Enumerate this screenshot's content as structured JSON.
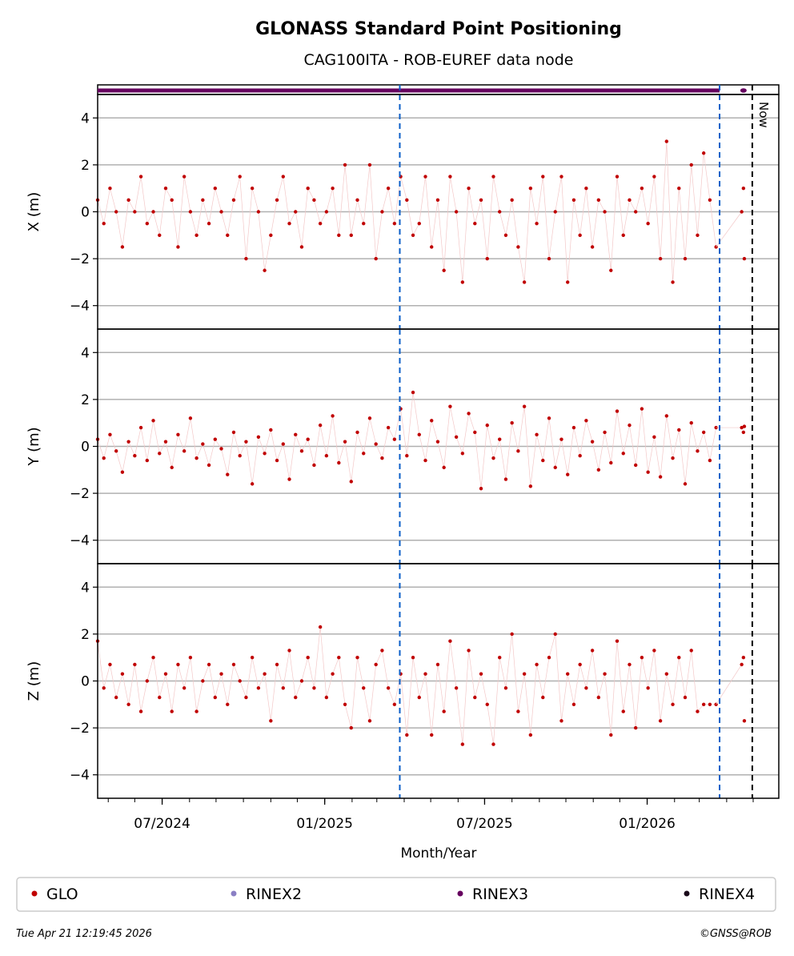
{
  "chart_data": {
    "type": "scatter",
    "title": "GLONASS Standard Point Positioning",
    "subtitle": "CAG100ITA - ROB-EUREF data node",
    "xlabel": "Month/Year",
    "x_start_date": "2024-04-19",
    "x_range_days": [
      0,
      771
    ],
    "x_ticks": [
      {
        "label": "07/2024",
        "day": 73
      },
      {
        "label": "01/2025",
        "day": 257
      },
      {
        "label": "07/2025",
        "day": 438
      },
      {
        "label": "01/2026",
        "day": 622
      }
    ],
    "minor_tick_days": [
      12,
      42,
      73,
      104,
      134,
      165,
      196,
      226,
      257,
      288,
      316,
      347,
      377,
      408,
      438,
      469,
      500,
      530,
      561,
      591,
      622,
      653,
      681,
      712,
      742
    ],
    "ylim": [
      -5,
      5
    ],
    "y_ticks": [
      4,
      2,
      0,
      -2,
      -4
    ],
    "y_tick_labels": [
      "4",
      "2",
      "0",
      "−2",
      "−4"
    ],
    "grid": true,
    "vlines": [
      {
        "day": 342,
        "color": "#0a5fc8",
        "style": "dashed"
      },
      {
        "day": 704,
        "color": "#0a5fc8",
        "style": "dashed"
      },
      {
        "day": 741,
        "color": "#000000",
        "style": "dashed",
        "label": "Now"
      }
    ],
    "step_days": 7,
    "series": [
      {
        "name": "X (m)",
        "color": "#c00000",
        "values": [
          0.5,
          -0.5,
          1,
          0,
          -1.5,
          0.5,
          0,
          1.5,
          -0.5,
          0,
          -1,
          1,
          0.5,
          -1.5,
          1.5,
          0,
          -1,
          0.5,
          -0.5,
          1,
          0,
          -1,
          0.5,
          1.5,
          -2,
          1,
          0,
          -2.5,
          -1,
          0.5,
          1.5,
          -0.5,
          0,
          -1.5,
          1,
          0.5,
          -0.5,
          0,
          1,
          -1,
          2,
          -1,
          0.5,
          -0.5,
          2,
          -2,
          0,
          1,
          -0.5,
          1.5,
          0.5,
          -1,
          -0.5,
          1.5,
          -1.5,
          0.5,
          -2.5,
          1.5,
          0,
          -3,
          1,
          -0.5,
          0.5,
          -2,
          1.5,
          0,
          -1,
          0.5,
          -1.5,
          -3,
          1,
          -0.5,
          1.5,
          -2,
          0,
          1.5,
          -3,
          0.5,
          -1,
          1,
          -1.5,
          0.5,
          0,
          -2.5,
          1.5,
          -1,
          0.5,
          0,
          1,
          -0.5,
          1.5,
          -2,
          3,
          -3,
          1,
          -2,
          2,
          -1,
          2.5,
          0.5,
          -1.5
        ],
        "late_points": [
          {
            "day": 729,
            "value": 0
          },
          {
            "day": 731,
            "value": 1
          },
          {
            "day": 732,
            "value": -2
          }
        ]
      },
      {
        "name": "Y (m)",
        "color": "#c00000",
        "values": [
          0.3,
          -0.5,
          0.5,
          -0.2,
          -1.1,
          0.2,
          -0.4,
          0.8,
          -0.6,
          1.1,
          -0.3,
          0.2,
          -0.9,
          0.5,
          -0.2,
          1.2,
          -0.5,
          0.1,
          -0.8,
          0.3,
          -0.1,
          -1.2,
          0.6,
          -0.4,
          0.2,
          -1.6,
          0.4,
          -0.3,
          0.7,
          -0.6,
          0.1,
          -1.4,
          0.5,
          -0.2,
          0.3,
          -0.8,
          0.9,
          -0.4,
          1.3,
          -0.7,
          0.2,
          -1.5,
          0.6,
          -0.3,
          1.2,
          0.1,
          -0.5,
          0.8,
          0.3,
          1.6,
          -0.4,
          2.3,
          0.5,
          -0.6,
          1.1,
          0.2,
          -0.9,
          1.7,
          0.4,
          -0.3,
          1.4,
          0.6,
          -1.8,
          0.9,
          -0.5,
          0.3,
          -1.4,
          1.0,
          -0.2,
          1.7,
          -1.7,
          0.5,
          -0.6,
          1.2,
          -0.9,
          0.3,
          -1.2,
          0.8,
          -0.4,
          1.1,
          0.2,
          -1.0,
          0.6,
          -0.7,
          1.5,
          -0.3,
          0.9,
          -0.8,
          1.6,
          -1.1,
          0.4,
          -1.3,
          1.3,
          -0.5,
          0.7,
          -1.6,
          1.0,
          -0.2,
          0.6,
          -0.6,
          0.8
        ],
        "late_points": [
          {
            "day": 729,
            "value": 0.8
          },
          {
            "day": 731,
            "value": 0.6
          },
          {
            "day": 732,
            "value": 0.85
          }
        ]
      },
      {
        "name": "Z (m)",
        "color": "#c00000",
        "values": [
          1.7,
          -0.3,
          0.7,
          -0.7,
          0.3,
          -1,
          0.7,
          -1.3,
          0,
          1,
          -0.7,
          0.3,
          -1.3,
          0.7,
          -0.3,
          1,
          -1.3,
          0,
          0.7,
          -0.7,
          0.3,
          -1,
          0.7,
          0,
          -0.7,
          1,
          -0.3,
          0.3,
          -1.7,
          0.7,
          -0.3,
          1.3,
          -0.7,
          0,
          1,
          -0.3,
          2.3,
          -0.7,
          0.3,
          1,
          -1,
          -2,
          1,
          -0.3,
          -1.7,
          0.7,
          1.3,
          -0.3,
          -1,
          0.3,
          -2.3,
          1,
          -0.7,
          0.3,
          -2.3,
          0.7,
          -1.3,
          1.7,
          -0.3,
          -2.7,
          1.3,
          -0.7,
          0.3,
          -1,
          -2.7,
          1,
          -0.3,
          2,
          -1.3,
          0.3,
          -2.3,
          0.7,
          -0.7,
          1,
          2,
          -1.7,
          0.3,
          -1,
          0.7,
          -0.3,
          1.3,
          -0.7,
          0.3,
          -2.3,
          1.7,
          -1.3,
          0.7,
          -2,
          1,
          -0.3,
          1.3,
          -1.7,
          0.3,
          -1,
          1,
          -0.7,
          1.3,
          -1.3,
          -1,
          -1,
          -1
        ],
        "late_points": [
          {
            "day": 729,
            "value": 0.7
          },
          {
            "day": 731,
            "value": 1
          },
          {
            "day": 732,
            "value": -1.7
          }
        ]
      }
    ],
    "availability_strip": [
      {
        "name": "RINEX3",
        "from_day": 0,
        "to_day": 704
      },
      {
        "name": "RINEX3",
        "from_day": 731,
        "to_day": 731
      }
    ],
    "legend": {
      "placement": "bottom",
      "entries": [
        {
          "label": "GLO",
          "color": "#c00000"
        },
        {
          "label": "RINEX2",
          "color": "#8a7fc4"
        },
        {
          "label": "RINEX3",
          "color": "#66005f"
        },
        {
          "label": "RINEX4",
          "color": "#1a0a1a"
        }
      ]
    }
  },
  "footer": {
    "timestamp": "Tue Apr 21 12:19:45 2026",
    "copyright": "©GNSS@ROB"
  }
}
